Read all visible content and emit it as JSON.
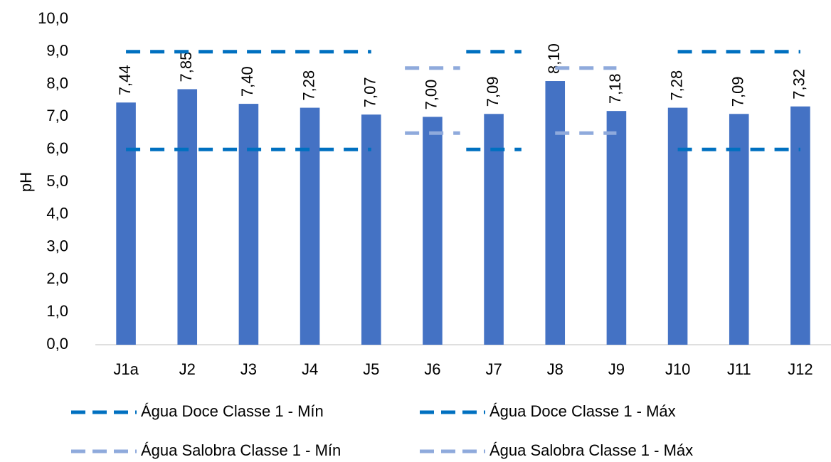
{
  "chart_data": {
    "type": "bar",
    "y_label": "pH",
    "categories": [
      "J1a",
      "J2",
      "J3",
      "J4",
      "J5",
      "J6",
      "J7",
      "J8",
      "J9",
      "J10",
      "J11",
      "J12"
    ],
    "values": [
      7.44,
      7.85,
      7.4,
      7.28,
      7.07,
      7.0,
      7.09,
      8.1,
      7.18,
      7.28,
      7.09,
      7.32
    ],
    "value_labels": [
      "7,44",
      "7,85",
      "7,40",
      "7,28",
      "7,07",
      "7,00",
      "7,09",
      "8,10",
      "7,18",
      "7,28",
      "7,09",
      "7,32"
    ],
    "color": "#4472c4",
    "lines": [
      {
        "name": "Água Doce Classe 1 - Mín",
        "color": "#0070c0",
        "values": [
          6,
          6,
          6,
          6,
          6,
          null,
          6,
          null,
          null,
          6,
          6,
          6
        ]
      },
      {
        "name": "Água Doce Classe 1 - Máx",
        "color": "#0070c0",
        "values": [
          9,
          9,
          9,
          9,
          9,
          null,
          9,
          null,
          null,
          9,
          9,
          9
        ]
      },
      {
        "name": "Água Salobra Classe 1 - Mín",
        "color": "#8faadc",
        "values": [
          null,
          null,
          null,
          null,
          null,
          6.5,
          null,
          6.5,
          6.5,
          null,
          null,
          null
        ]
      },
      {
        "name": "Água Salobra Classe 1 - Máx",
        "color": "#8faadc",
        "values": [
          null,
          null,
          null,
          null,
          null,
          8.5,
          null,
          8.5,
          8.5,
          null,
          null,
          null
        ]
      }
    ],
    "ylim": [
      0,
      10
    ],
    "yticks": [
      {
        "value": 0,
        "label": "0,0"
      },
      {
        "value": 1,
        "label": "1,0"
      },
      {
        "value": 2,
        "label": "2,0"
      },
      {
        "value": 3,
        "label": "3,0"
      },
      {
        "value": 4,
        "label": "4,0"
      },
      {
        "value": 5,
        "label": "5,0"
      },
      {
        "value": 6,
        "label": "6,0"
      },
      {
        "value": 7,
        "label": "7,0"
      },
      {
        "value": 8,
        "label": "8,0"
      },
      {
        "value": 9,
        "label": "9,0"
      },
      {
        "value": 10,
        "label": "10,0"
      }
    ],
    "grid": false,
    "legend": "bottom"
  }
}
